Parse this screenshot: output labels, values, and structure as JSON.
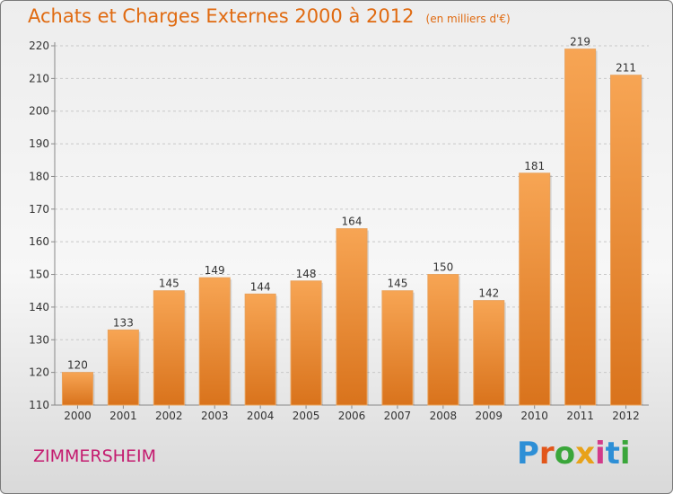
{
  "header": {
    "title": "Achats et Charges Externes 2000 à 2012",
    "subtitle": "(en milliers d'€)"
  },
  "footer": {
    "city": "ZIMMERSHEIM",
    "brand_letters": [
      "P",
      "r",
      "o",
      "x",
      "i",
      "t",
      "i"
    ],
    "brand_colors": [
      "#2e8fd6",
      "#e2561a",
      "#3aa63a",
      "#e8a21a",
      "#d23a8a",
      "#2e8fd6",
      "#3aa63a"
    ]
  },
  "colors": {
    "bar_light": "#f7a554",
    "bar_dark": "#d9731c",
    "text_accent": "#e06a10"
  },
  "chart_data": {
    "type": "bar",
    "title": "Achats et Charges Externes 2000 à 2012",
    "subtitle": "(en milliers d'€)",
    "categories": [
      "2000",
      "2001",
      "2002",
      "2003",
      "2004",
      "2005",
      "2006",
      "2007",
      "2008",
      "2009",
      "2010",
      "2011",
      "2012"
    ],
    "values": [
      120,
      133,
      145,
      149,
      144,
      148,
      164,
      145,
      150,
      142,
      181,
      219,
      211
    ],
    "xlabel": "",
    "ylabel": "",
    "ylim": [
      110,
      220
    ],
    "yticks": [
      110,
      120,
      130,
      140,
      150,
      160,
      170,
      180,
      190,
      200,
      210,
      220
    ],
    "grid": true,
    "legend": "none"
  }
}
